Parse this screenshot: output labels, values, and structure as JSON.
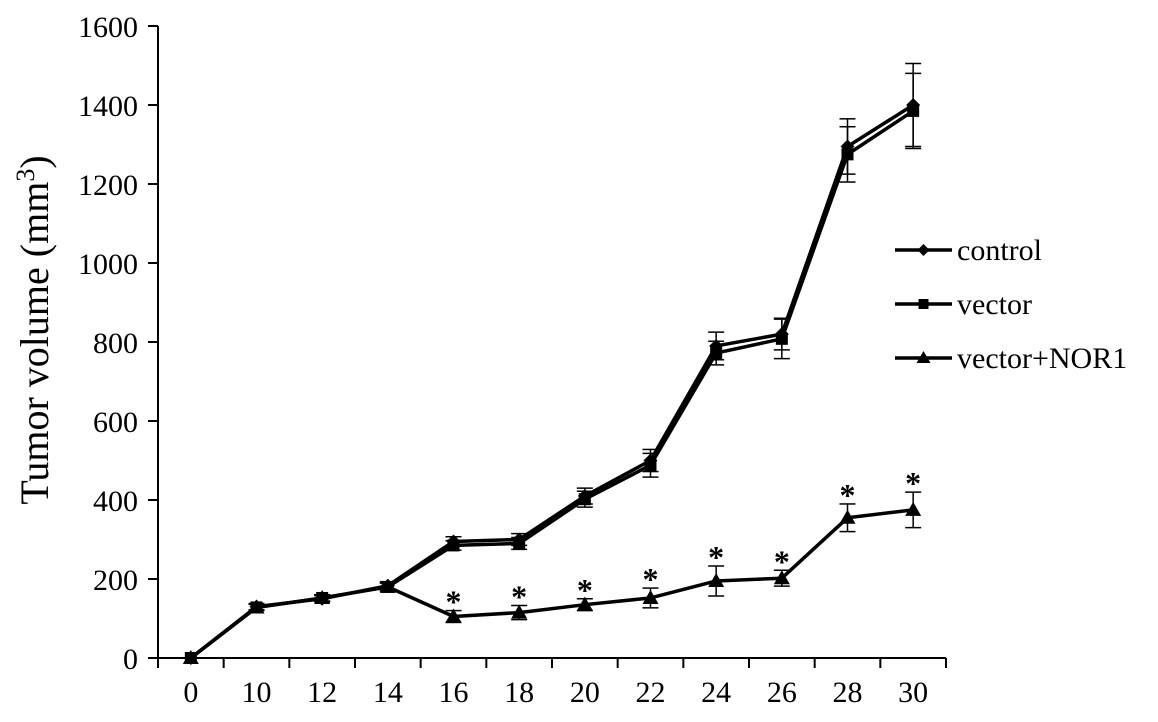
{
  "chart_data": {
    "type": "line",
    "xlabel": "",
    "ylabel": "Tumor volume (mm",
    "ylabel_superscript": "3",
    "ylabel_close": ")",
    "categories": [
      "0",
      "10",
      "12",
      "14",
      "16",
      "18",
      "20",
      "22",
      "24",
      "26",
      "28",
      "30"
    ],
    "ylim": [
      0,
      1600
    ],
    "yticks": [
      "0",
      "200",
      "400",
      "600",
      "800",
      "1000",
      "1200",
      "1400",
      "1600"
    ],
    "grid": false,
    "legend_position": "right",
    "significance_marker": "*",
    "series": [
      {
        "name": "control",
        "marker": "diamond",
        "values": [
          0,
          130,
          150,
          183,
          295,
          300,
          410,
          500,
          790,
          820,
          1295,
          1400
        ],
        "errors": [
          0,
          8,
          8,
          10,
          12,
          15,
          20,
          28,
          35,
          40,
          70,
          105
        ]
      },
      {
        "name": "vector",
        "marker": "square",
        "values": [
          0,
          128,
          152,
          180,
          285,
          290,
          402,
          488,
          772,
          808,
          1275,
          1385
        ],
        "errors": [
          0,
          8,
          8,
          10,
          12,
          15,
          20,
          30,
          30,
          50,
          70,
          95
        ]
      },
      {
        "name": "vector+NOR1",
        "marker": "triangle",
        "values": [
          0,
          128,
          152,
          180,
          105,
          115,
          135,
          152,
          195,
          202,
          355,
          375
        ],
        "errors": [
          0,
          8,
          8,
          10,
          15,
          18,
          15,
          25,
          38,
          20,
          35,
          45
        ],
        "significant": [
          false,
          false,
          false,
          false,
          true,
          true,
          true,
          true,
          true,
          true,
          true,
          true
        ]
      }
    ]
  }
}
